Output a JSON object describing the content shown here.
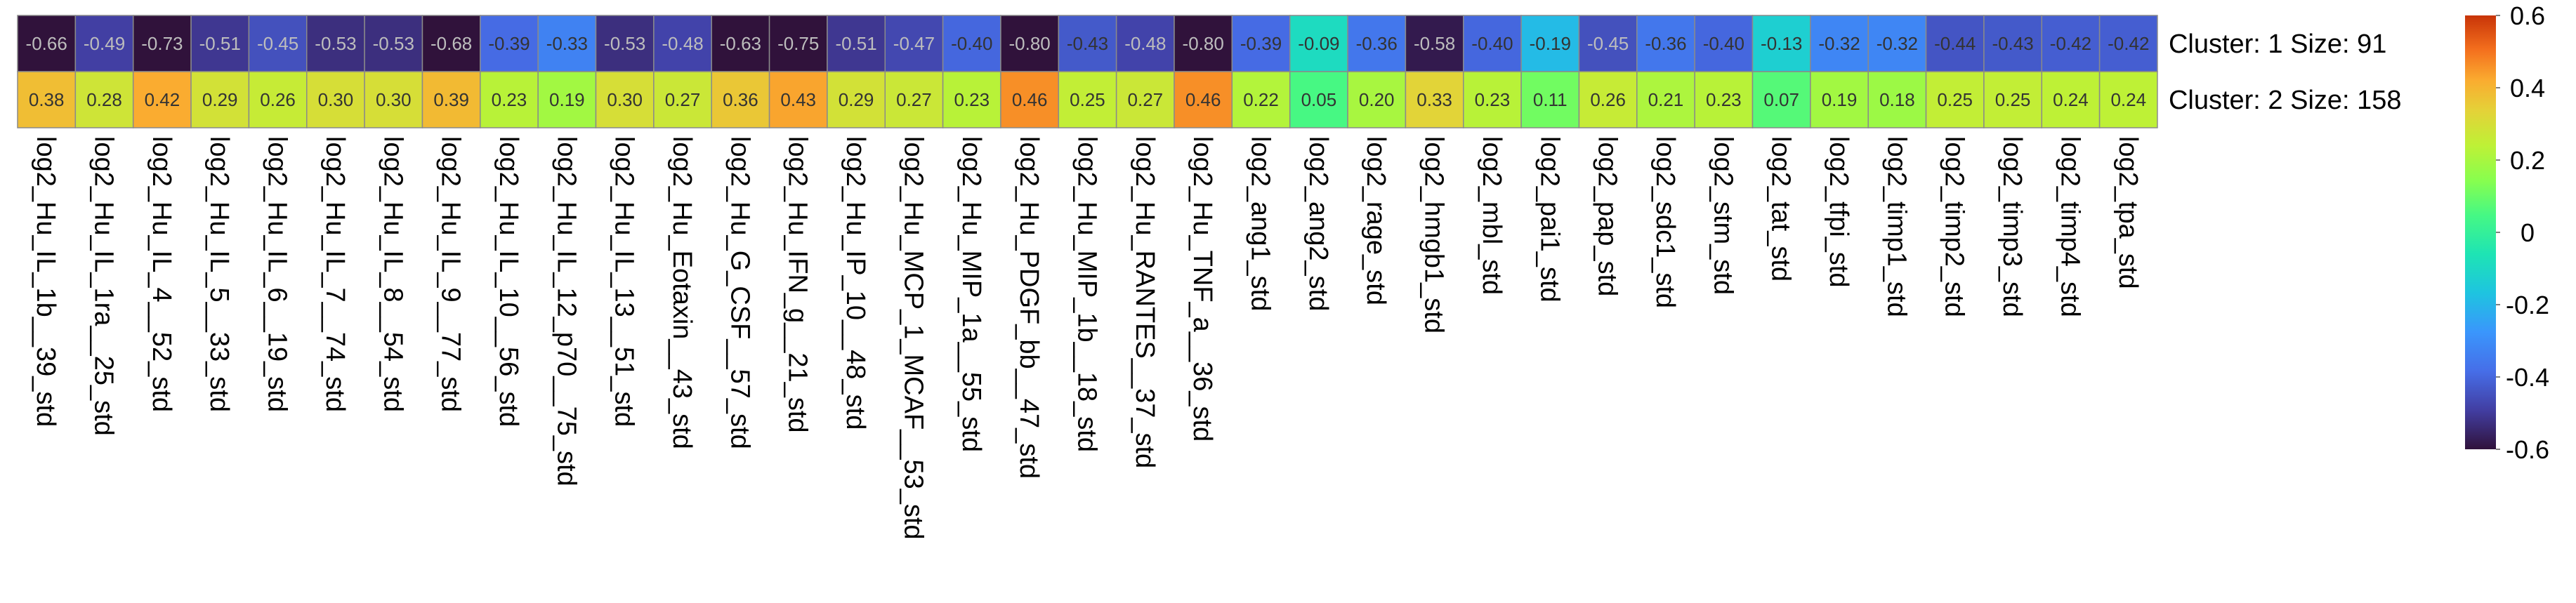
{
  "chart_data": {
    "type": "heatmap",
    "rows": [
      "Cluster: 1 Size: 91",
      "Cluster: 2 Size: 158"
    ],
    "columns": [
      "log2_Hu_IL_1b__39_std",
      "log2_Hu_IL_1ra__25_std",
      "log2_Hu_IL_4__52_std",
      "log2_Hu_IL_5__33_std",
      "log2_Hu_IL_6__19_std",
      "log2_Hu_IL_7__74_std",
      "log2_Hu_IL_8__54_std",
      "log2_Hu_IL_9__77_std",
      "log2_Hu_IL_10__56_std",
      "log2_Hu_IL_12_p70__75_std",
      "log2_Hu_IL_13__51_std",
      "log2_Hu_Eotaxin__43_std",
      "log2_Hu_G_CSF__57_std",
      "log2_Hu_IFN_g__21_std",
      "log2_Hu_IP_10__48_std",
      "log2_Hu_MCP_1_MCAF__53_std",
      "log2_Hu_MIP_1a__55_std",
      "log2_Hu_PDGF_bb__47_std",
      "log2_Hu_MIP_1b__18_std",
      "log2_Hu_RANTES__37_std",
      "log2_Hu_TNF_a__36_std",
      "log2_ang1_std",
      "log2_ang2_std",
      "log2_rage_std",
      "log2_hmgb1_std",
      "log2_mbl_std",
      "log2_pai1_std",
      "log2_pap_std",
      "log2_sdc1_std",
      "log2_stm_std",
      "log2_tat_std",
      "log2_tfpi_std",
      "log2_timp1_std",
      "log2_timp2_std",
      "log2_timp3_std",
      "log2_timp4_std",
      "log2_tpa_std"
    ],
    "values": [
      [
        -0.66,
        -0.49,
        -0.73,
        -0.51,
        -0.45,
        -0.53,
        -0.53,
        -0.68,
        -0.39,
        -0.33,
        -0.53,
        -0.48,
        -0.63,
        -0.75,
        -0.51,
        -0.47,
        -0.4,
        -0.8,
        -0.43,
        -0.48,
        -0.8,
        -0.39,
        -0.09,
        -0.36,
        -0.58,
        -0.4,
        -0.19,
        -0.45,
        -0.36,
        -0.4,
        -0.13,
        -0.32,
        -0.32,
        -0.44,
        -0.43,
        -0.42,
        -0.42
      ],
      [
        0.38,
        0.28,
        0.42,
        0.29,
        0.26,
        0.3,
        0.3,
        0.39,
        0.23,
        0.19,
        0.3,
        0.27,
        0.36,
        0.43,
        0.29,
        0.27,
        0.23,
        0.46,
        0.25,
        0.27,
        0.46,
        0.22,
        0.05,
        0.2,
        0.33,
        0.23,
        0.11,
        0.26,
        0.21,
        0.23,
        0.07,
        0.19,
        0.18,
        0.25,
        0.25,
        0.24,
        0.24
      ]
    ],
    "value_labels": [
      [
        "-0.66",
        "-0.49",
        "-0.73",
        "-0.51",
        "-0.45",
        "-0.53",
        "-0.53",
        "-0.68",
        "-0.39",
        "-0.33",
        "-0.53",
        "-0.48",
        "-0.63",
        "-0.75",
        "-0.51",
        "-0.47",
        "-0.40",
        "-0.80",
        "-0.43",
        "-0.48",
        "-0.80",
        "-0.39",
        "-0.09",
        "-0.36",
        "-0.58",
        "-0.40",
        "-0.19",
        "-0.45",
        "-0.36",
        "-0.40",
        "-0.13",
        "-0.32",
        "-0.32",
        "-0.44",
        "-0.43",
        "-0.42",
        "-0.42"
      ],
      [
        "0.38",
        "0.28",
        "0.42",
        "0.29",
        "0.26",
        "0.30",
        "0.30",
        "0.39",
        "0.23",
        "0.19",
        "0.30",
        "0.27",
        "0.36",
        "0.43",
        "0.29",
        "0.27",
        "0.23",
        "0.46",
        "0.25",
        "0.27",
        "0.46",
        "0.22",
        "0.05",
        "0.20",
        "0.33",
        "0.23",
        "0.11",
        "0.26",
        "0.21",
        "0.23",
        "0.07",
        "0.19",
        "0.18",
        "0.25",
        "0.25",
        "0.24",
        "0.24"
      ]
    ],
    "colorscale": "turbo",
    "color_range": [
      -0.6,
      0.6
    ],
    "colorbar_ticks": [
      "0.6",
      "0.4",
      "0.2",
      "0",
      "-0.2",
      "-0.4",
      "-0.6"
    ],
    "colorbar_tick_values": [
      0.6,
      0.4,
      0.2,
      0,
      -0.2,
      -0.4,
      -0.6
    ],
    "title": "",
    "xlabel": "",
    "ylabel": "",
    "grid": false,
    "legend": "right"
  }
}
